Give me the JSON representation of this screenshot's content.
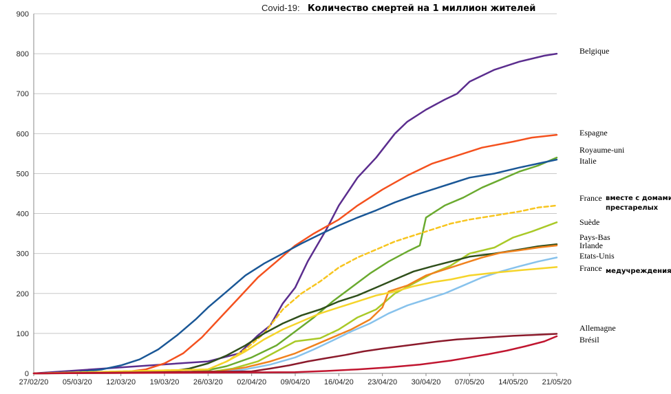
{
  "chart_data": {
    "type": "line",
    "title_prefix": "Covid-19:",
    "title": "Количество смертей на 1 миллион жителей",
    "xlabel": "",
    "ylabel": "",
    "ylim": [
      0,
      900
    ],
    "y_ticks": [
      "0",
      "100",
      "200",
      "300",
      "400",
      "500",
      "600",
      "700",
      "800",
      "900"
    ],
    "x_days_range": [
      0,
      84
    ],
    "x_ticks": [
      {
        "label": "27/02/20",
        "day": 0
      },
      {
        "label": "05/03/20",
        "day": 7
      },
      {
        "label": "12/03/20",
        "day": 14
      },
      {
        "label": "19/03/20",
        "day": 21
      },
      {
        "label": "26/03/20",
        "day": 28
      },
      {
        "label": "02/04/20",
        "day": 35
      },
      {
        "label": "09/04/20",
        "day": 42
      },
      {
        "label": "16/04/20",
        "day": 49
      },
      {
        "label": "23/04/20",
        "day": 56
      },
      {
        "label": "30/04/20",
        "day": 63
      },
      {
        "label": "07/05/20",
        "day": 70
      },
      {
        "label": "14/05/20",
        "day": 77
      },
      {
        "label": "21/05/20",
        "day": 84
      }
    ],
    "grid": true,
    "series": [
      {
        "name": "Belgique",
        "color": "#5b2d8e",
        "dashed": false,
        "points": [
          [
            0,
            0
          ],
          [
            28,
            30
          ],
          [
            33,
            50
          ],
          [
            36,
            95
          ],
          [
            38,
            120
          ],
          [
            40,
            175
          ],
          [
            42,
            215
          ],
          [
            44,
            280
          ],
          [
            47,
            360
          ],
          [
            49,
            420
          ],
          [
            52,
            490
          ],
          [
            55,
            540
          ],
          [
            58,
            600
          ],
          [
            60,
            630
          ],
          [
            63,
            660
          ],
          [
            66,
            685
          ],
          [
            68,
            700
          ],
          [
            70,
            730
          ],
          [
            74,
            760
          ],
          [
            78,
            780
          ],
          [
            82,
            795
          ],
          [
            84,
            800
          ]
        ]
      },
      {
        "name": "Espagne",
        "color": "#f4511e",
        "dashed": false,
        "points": [
          [
            0,
            0
          ],
          [
            14,
            2
          ],
          [
            18,
            10
          ],
          [
            21,
            25
          ],
          [
            24,
            50
          ],
          [
            27,
            90
          ],
          [
            30,
            140
          ],
          [
            33,
            190
          ],
          [
            36,
            240
          ],
          [
            39,
            280
          ],
          [
            42,
            320
          ],
          [
            45,
            350
          ],
          [
            49,
            385
          ],
          [
            52,
            420
          ],
          [
            56,
            460
          ],
          [
            60,
            495
          ],
          [
            64,
            525
          ],
          [
            68,
            545
          ],
          [
            72,
            565
          ],
          [
            77,
            580
          ],
          [
            80,
            590
          ],
          [
            84,
            597
          ]
        ]
      },
      {
        "name": "Royaume-uni",
        "color": "#6aaa2f",
        "dashed": false,
        "points": [
          [
            0,
            0
          ],
          [
            24,
            2
          ],
          [
            28,
            8
          ],
          [
            31,
            18
          ],
          [
            35,
            40
          ],
          [
            39,
            70
          ],
          [
            42,
            105
          ],
          [
            45,
            140
          ],
          [
            48,
            180
          ],
          [
            51,
            215
          ],
          [
            54,
            250
          ],
          [
            57,
            280
          ],
          [
            60,
            305
          ],
          [
            62,
            320
          ],
          [
            63,
            390
          ],
          [
            66,
            420
          ],
          [
            69,
            440
          ],
          [
            72,
            465
          ],
          [
            75,
            485
          ],
          [
            78,
            505
          ],
          [
            81,
            520
          ],
          [
            84,
            540
          ]
        ]
      },
      {
        "name": "Italie",
        "color": "#1a5796",
        "dashed": false,
        "points": [
          [
            0,
            0
          ],
          [
            7,
            3
          ],
          [
            11,
            10
          ],
          [
            14,
            20
          ],
          [
            17,
            35
          ],
          [
            20,
            60
          ],
          [
            23,
            95
          ],
          [
            26,
            135
          ],
          [
            28,
            165
          ],
          [
            31,
            205
          ],
          [
            34,
            245
          ],
          [
            37,
            275
          ],
          [
            40,
            300
          ],
          [
            43,
            325
          ],
          [
            46,
            348
          ],
          [
            49,
            370
          ],
          [
            52,
            390
          ],
          [
            55,
            408
          ],
          [
            58,
            428
          ],
          [
            61,
            445
          ],
          [
            64,
            460
          ],
          [
            67,
            475
          ],
          [
            70,
            490
          ],
          [
            74,
            500
          ],
          [
            78,
            515
          ],
          [
            81,
            525
          ],
          [
            84,
            535
          ]
        ]
      },
      {
        "name": "France",
        "note": "вместе с домами престарелых",
        "color": "#f7c51f",
        "dashed": true,
        "points": [
          [
            0,
            0
          ],
          [
            28,
            10
          ],
          [
            31,
            30
          ],
          [
            34,
            60
          ],
          [
            37,
            100
          ],
          [
            40,
            160
          ],
          [
            43,
            200
          ],
          [
            46,
            230
          ],
          [
            49,
            265
          ],
          [
            52,
            290
          ],
          [
            55,
            310
          ],
          [
            58,
            330
          ],
          [
            61,
            345
          ],
          [
            64,
            360
          ],
          [
            67,
            375
          ],
          [
            70,
            385
          ],
          [
            74,
            395
          ],
          [
            78,
            405
          ],
          [
            81,
            415
          ],
          [
            84,
            420
          ]
        ]
      },
      {
        "name": "Suède",
        "color": "#a9c927",
        "dashed": false,
        "points": [
          [
            0,
            0
          ],
          [
            28,
            3
          ],
          [
            32,
            12
          ],
          [
            36,
            30
          ],
          [
            39,
            55
          ],
          [
            42,
            80
          ],
          [
            46,
            88
          ],
          [
            49,
            110
          ],
          [
            52,
            140
          ],
          [
            55,
            160
          ],
          [
            58,
            200
          ],
          [
            61,
            225
          ],
          [
            64,
            250
          ],
          [
            67,
            270
          ],
          [
            70,
            300
          ],
          [
            74,
            315
          ],
          [
            77,
            340
          ],
          [
            80,
            355
          ],
          [
            84,
            378
          ]
        ]
      },
      {
        "name": "Pays-Bas",
        "color": "#2f4f1b",
        "dashed": false,
        "points": [
          [
            0,
            0
          ],
          [
            21,
            3
          ],
          [
            25,
            12
          ],
          [
            28,
            25
          ],
          [
            31,
            45
          ],
          [
            34,
            70
          ],
          [
            37,
            100
          ],
          [
            40,
            125
          ],
          [
            43,
            145
          ],
          [
            46,
            160
          ],
          [
            49,
            180
          ],
          [
            52,
            195
          ],
          [
            55,
            215
          ],
          [
            58,
            235
          ],
          [
            61,
            255
          ],
          [
            64,
            268
          ],
          [
            67,
            280
          ],
          [
            70,
            292
          ],
          [
            74,
            300
          ],
          [
            78,
            310
          ],
          [
            81,
            318
          ],
          [
            84,
            323
          ]
        ]
      },
      {
        "name": "Irlande",
        "color": "#f0821e",
        "dashed": false,
        "points": [
          [
            0,
            0
          ],
          [
            30,
            5
          ],
          [
            34,
            15
          ],
          [
            38,
            30
          ],
          [
            42,
            50
          ],
          [
            45,
            70
          ],
          [
            48,
            90
          ],
          [
            51,
            110
          ],
          [
            54,
            135
          ],
          [
            56,
            165
          ],
          [
            57,
            205
          ],
          [
            60,
            220
          ],
          [
            63,
            245
          ],
          [
            66,
            260
          ],
          [
            69,
            275
          ],
          [
            72,
            290
          ],
          [
            75,
            302
          ],
          [
            78,
            308
          ],
          [
            81,
            315
          ],
          [
            84,
            320
          ]
        ]
      },
      {
        "name": "Etats-Unis",
        "color": "#87c2ec",
        "dashed": false,
        "points": [
          [
            0,
            0
          ],
          [
            30,
            3
          ],
          [
            34,
            10
          ],
          [
            38,
            22
          ],
          [
            42,
            40
          ],
          [
            45,
            60
          ],
          [
            48,
            82
          ],
          [
            51,
            105
          ],
          [
            54,
            125
          ],
          [
            57,
            150
          ],
          [
            60,
            170
          ],
          [
            63,
            185
          ],
          [
            66,
            200
          ],
          [
            69,
            220
          ],
          [
            72,
            240
          ],
          [
            75,
            255
          ],
          [
            78,
            268
          ],
          [
            81,
            280
          ],
          [
            84,
            290
          ]
        ]
      },
      {
        "name": "France",
        "note": "медучреждения",
        "color": "#f5d42a",
        "dashed": false,
        "points": [
          [
            0,
            0
          ],
          [
            28,
            10
          ],
          [
            31,
            30
          ],
          [
            34,
            55
          ],
          [
            37,
            85
          ],
          [
            40,
            110
          ],
          [
            43,
            130
          ],
          [
            46,
            150
          ],
          [
            49,
            165
          ],
          [
            52,
            180
          ],
          [
            55,
            195
          ],
          [
            58,
            205
          ],
          [
            61,
            218
          ],
          [
            64,
            228
          ],
          [
            67,
            235
          ],
          [
            70,
            245
          ],
          [
            74,
            252
          ],
          [
            78,
            258
          ],
          [
            81,
            262
          ],
          [
            84,
            266
          ]
        ]
      },
      {
        "name": "Allemagne",
        "color": "#8b1a2b",
        "dashed": false,
        "points": [
          [
            0,
            0
          ],
          [
            35,
            5
          ],
          [
            38,
            12
          ],
          [
            41,
            20
          ],
          [
            44,
            30
          ],
          [
            47,
            38
          ],
          [
            50,
            46
          ],
          [
            53,
            55
          ],
          [
            56,
            62
          ],
          [
            59,
            68
          ],
          [
            62,
            74
          ],
          [
            65,
            80
          ],
          [
            68,
            85
          ],
          [
            71,
            88
          ],
          [
            74,
            91
          ],
          [
            77,
            94
          ],
          [
            80,
            96
          ],
          [
            84,
            99
          ]
        ]
      },
      {
        "name": "Brésil",
        "color": "#c0152f",
        "dashed": false,
        "points": [
          [
            0,
            0
          ],
          [
            42,
            3
          ],
          [
            47,
            6
          ],
          [
            52,
            10
          ],
          [
            57,
            15
          ],
          [
            62,
            22
          ],
          [
            67,
            32
          ],
          [
            70,
            40
          ],
          [
            73,
            48
          ],
          [
            76,
            57
          ],
          [
            79,
            68
          ],
          [
            82,
            80
          ],
          [
            84,
            93
          ]
        ]
      }
    ]
  }
}
